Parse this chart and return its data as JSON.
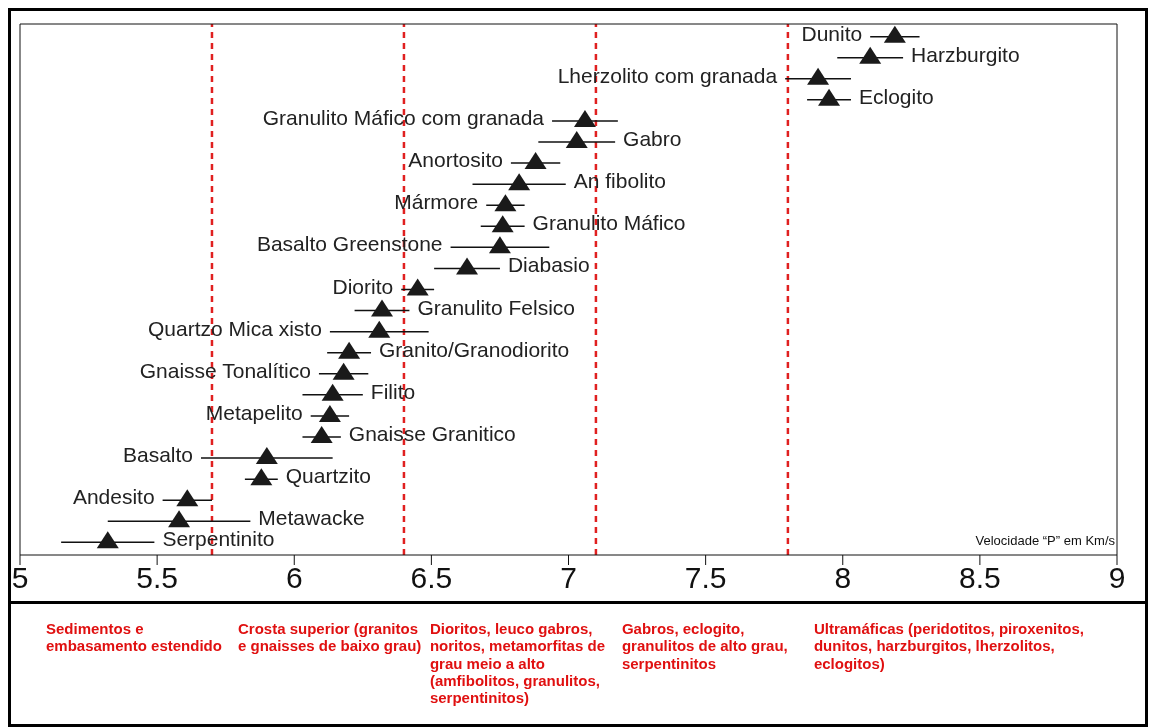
{
  "chart_data": {
    "type": "scatter",
    "orientation": "horizontal",
    "xlabel": "Velocidade “P” em Km/s",
    "categories": [
      "Dunito",
      "Harzburgito",
      "Lherzolito com granada",
      "Eclogito",
      "Granulito Máfico com granada",
      "Gabro",
      "Anortosito",
      "An fibolito",
      "Mármore",
      "Granulito Máfico",
      "Basalto Greenstone",
      "Diabasio",
      "Diorito",
      "Granulito Felsico",
      "Quartzo Mica xisto",
      "Granito/Granodiorito",
      "Gnaisse Tonalítico",
      "Filito",
      "Metapelito",
      "Gnaisse Granitico",
      "Basalto",
      "Quartzito",
      "Andesito",
      "Metawacke",
      "Serpentinito"
    ],
    "values": [
      8.19,
      8.1,
      7.91,
      7.95,
      7.06,
      7.03,
      6.88,
      6.82,
      6.77,
      6.76,
      6.75,
      6.63,
      6.45,
      6.32,
      6.31,
      6.2,
      6.18,
      6.14,
      6.13,
      6.1,
      5.9,
      5.88,
      5.61,
      5.58,
      5.32
    ],
    "errors": [
      0.09,
      0.12,
      0.12,
      0.08,
      0.12,
      0.14,
      0.09,
      0.17,
      0.07,
      0.08,
      0.18,
      0.12,
      0.06,
      0.1,
      0.18,
      0.08,
      0.09,
      0.11,
      0.07,
      0.07,
      0.24,
      0.06,
      0.09,
      0.26,
      0.17
    ],
    "color": "#1a1a1a",
    "marker": "triangle",
    "xlim": [
      5,
      9
    ],
    "xticks": [
      5,
      5.5,
      6,
      6.5,
      7,
      7.5,
      8,
      8.5,
      9
    ],
    "ref_lines": [
      {
        "axis": "x",
        "value": 5.7,
        "color": "#e02020",
        "line_style": "dashed"
      },
      {
        "axis": "x",
        "value": 6.4,
        "color": "#e02020",
        "line_style": "dashed"
      },
      {
        "axis": "x",
        "value": 7.1,
        "color": "#e02020",
        "line_style": "dashed"
      },
      {
        "axis": "x",
        "value": 7.8,
        "color": "#e02020",
        "line_style": "dashed"
      }
    ],
    "annotations": [
      "Sedimentos e embasamento estendido",
      "Crosta superior (granitos e gnaisses de baixo grau)",
      "Dioritos, leuco gabros, noritos, metamorfitas de grau meio a alto (amfibolitos, granulitos, serpentinitos)",
      "Gabros, eclogito, granulitos de alto grau, serpentinitos",
      "Ultramáficas (peridotitos, piroxenitos, dunitos, harzburgitos, lherzolitos, eclogitos)"
    ]
  }
}
